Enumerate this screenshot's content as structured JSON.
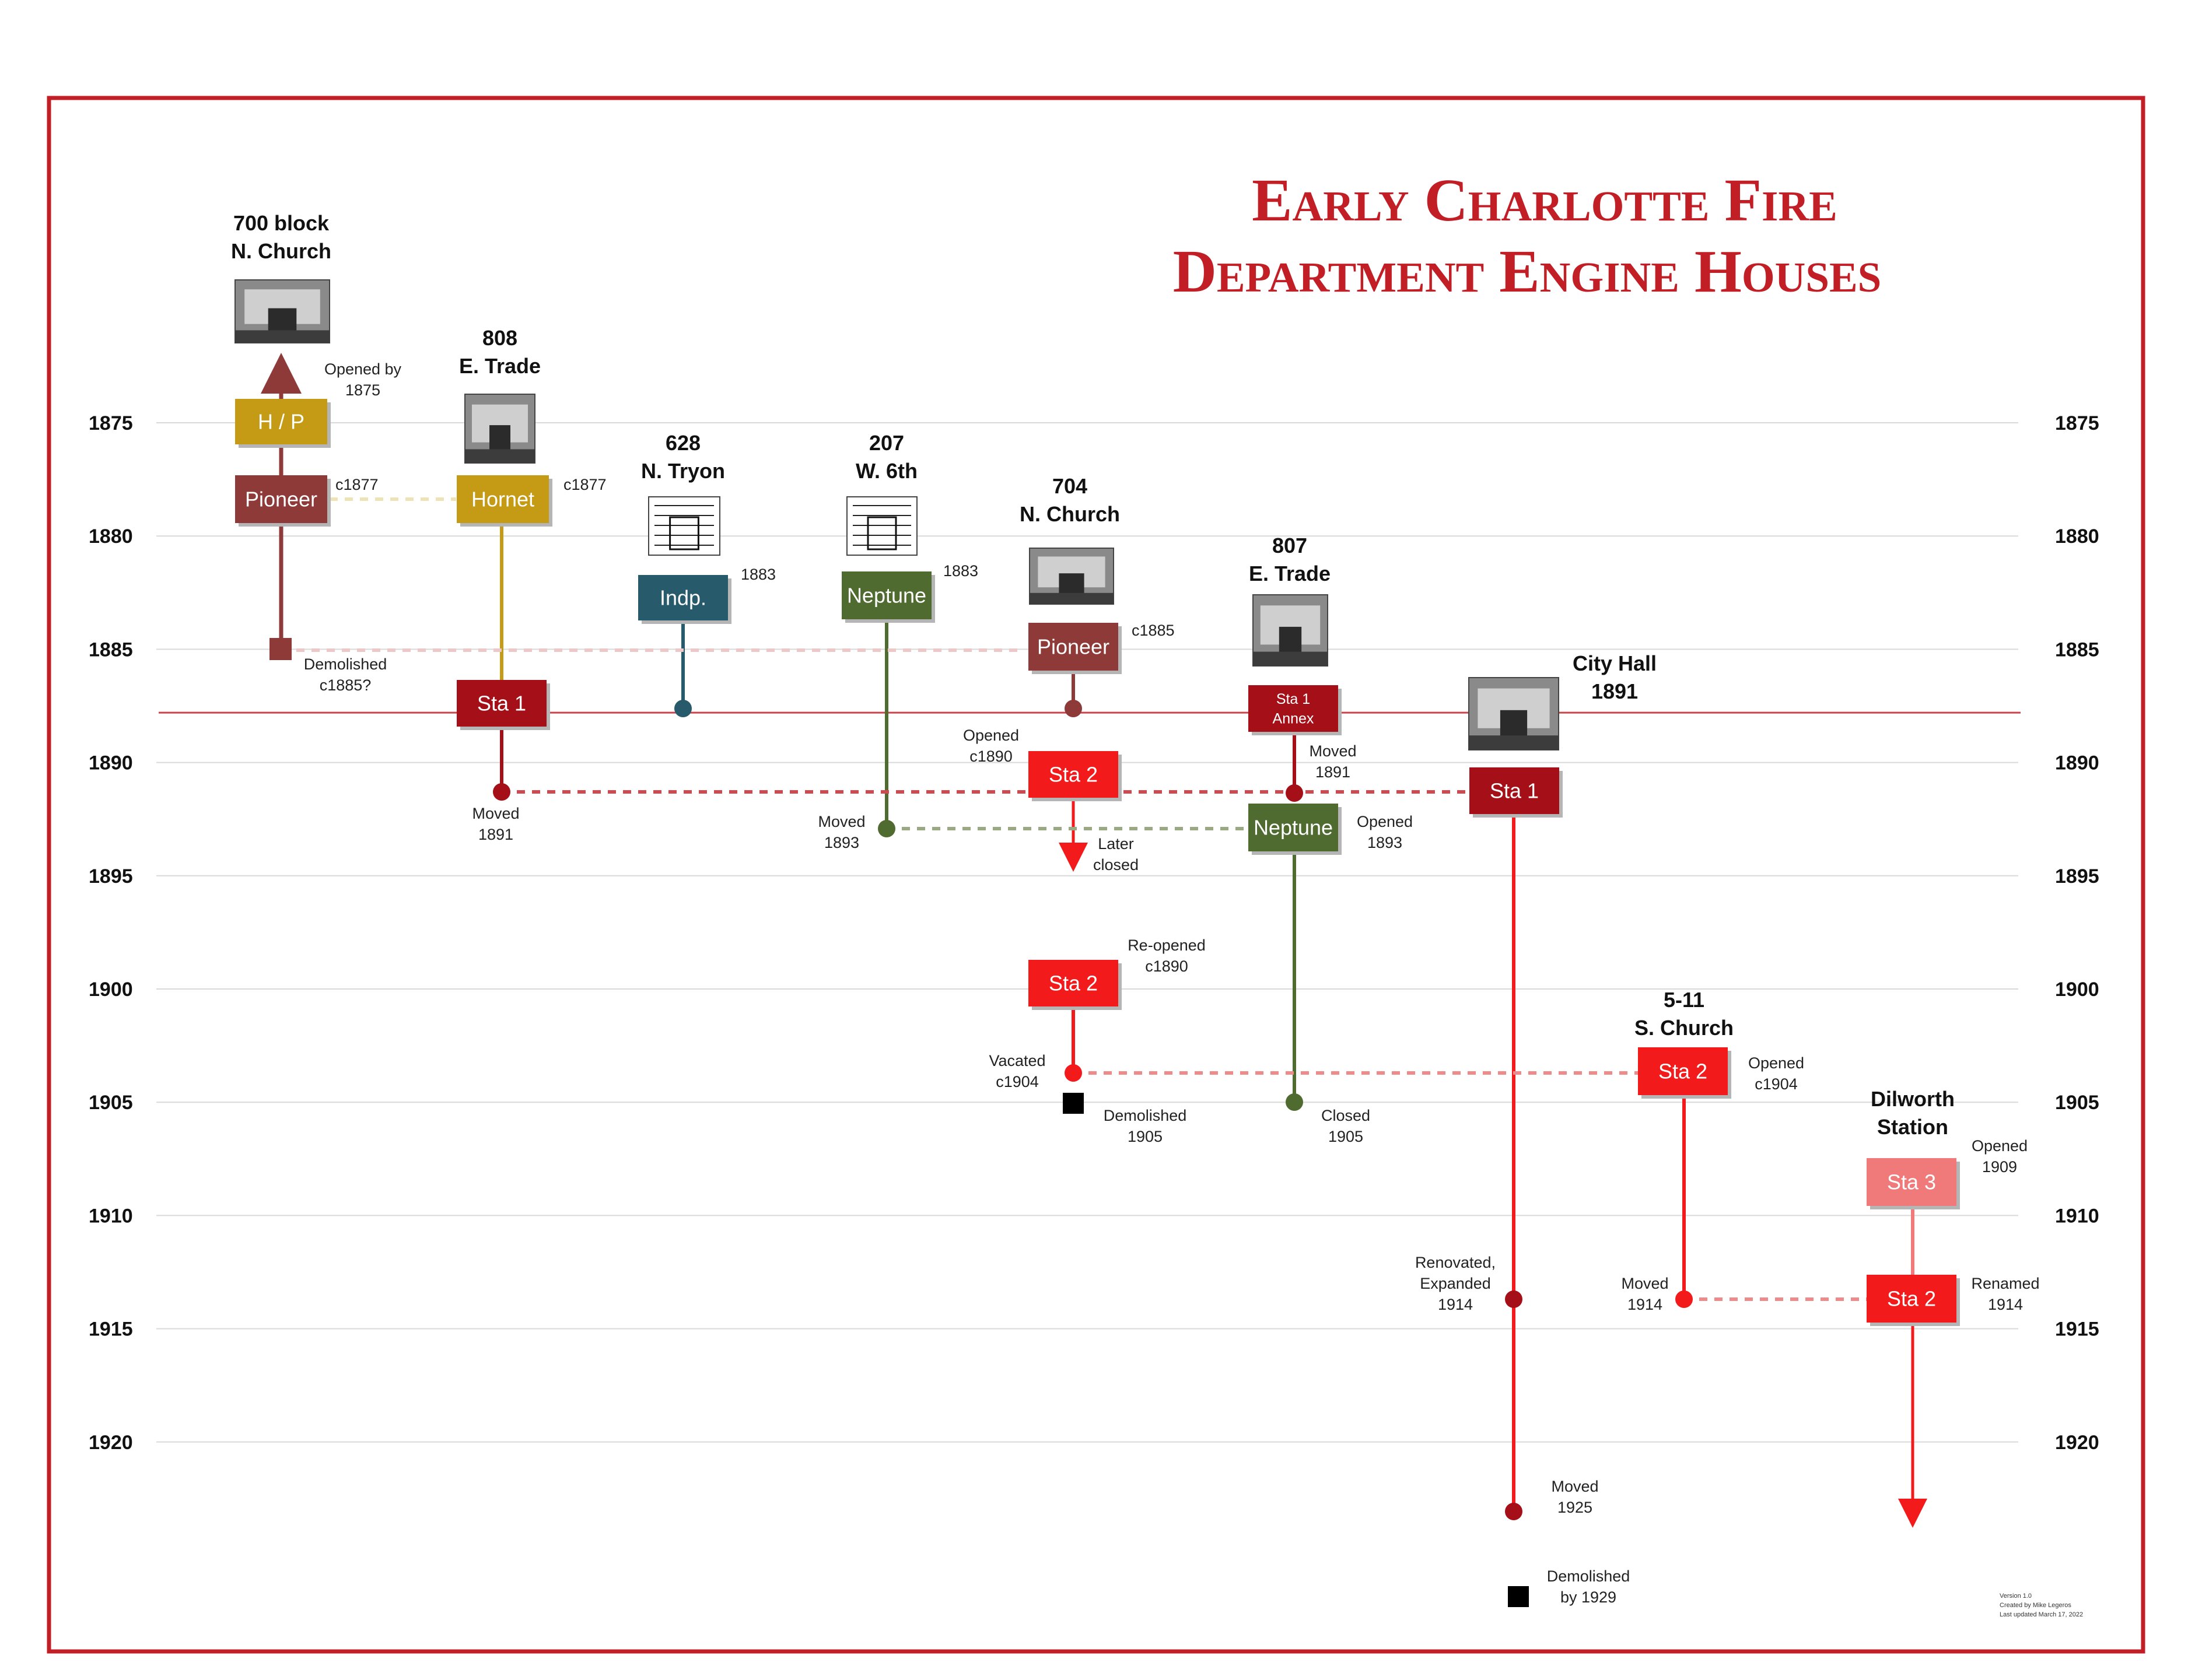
{
  "title": {
    "line1": "Early Charlotte Fire",
    "line2": "Department Engine Houses"
  },
  "colors": {
    "frame": "#c21e26",
    "gridline": "#d9d9d9",
    "pioneer": "#8e3a38",
    "hose_gold": "#c59a15",
    "independent": "#275a6b",
    "neptune": "#506b30",
    "sta1": "#a50f17",
    "sta2": "#f21a1a",
    "sta3": "#f07a7a",
    "marker_black": "#000000"
  },
  "years": [
    "1875",
    "1880",
    "1885",
    "1890",
    "1895",
    "1900",
    "1905",
    "1910",
    "1915",
    "1920"
  ],
  "locations": [
    {
      "key": "loc_700_church",
      "line1": "700 block",
      "line2": "N. Church",
      "icon": "photo-icon"
    },
    {
      "key": "loc_808_trade",
      "line1": "808",
      "line2": "E. Trade",
      "icon": "photo-icon"
    },
    {
      "key": "loc_628_tryon",
      "line1": "628",
      "line2": "N. Tryon",
      "icon": "sketch-icon"
    },
    {
      "key": "loc_207_6th",
      "line1": "207",
      "line2": "W. 6th",
      "icon": "sketch-icon"
    },
    {
      "key": "loc_704_church",
      "line1": "704",
      "line2": "N. Church",
      "icon": "photo-icon"
    },
    {
      "key": "loc_807_trade",
      "line1": "807",
      "line2": "E. Trade",
      "icon": "photo-icon"
    },
    {
      "key": "loc_city_hall",
      "line1": "City Hall",
      "line2": "1891",
      "icon": "photo-icon"
    },
    {
      "key": "loc_511_church",
      "line1": "5-11",
      "line2": "S. Church",
      "icon": ""
    },
    {
      "key": "loc_dilworth",
      "line1": "Dilworth",
      "line2": "Station",
      "icon": ""
    }
  ],
  "companies": [
    {
      "key": "hp",
      "label": "H / P",
      "color": "#c59a15",
      "label2": ""
    },
    {
      "key": "pioneer1",
      "label": "Pioneer",
      "color": "#8e3a38",
      "label2": ""
    },
    {
      "key": "hornet",
      "label": "Hornet",
      "color": "#c59a15",
      "label2": ""
    },
    {
      "key": "indp",
      "label": "Indp.",
      "color": "#275a6b",
      "label2": ""
    },
    {
      "key": "neptune1",
      "label": "Neptune",
      "color": "#506b30",
      "label2": ""
    },
    {
      "key": "pioneer2",
      "label": "Pioneer",
      "color": "#8e3a38",
      "label2": ""
    },
    {
      "key": "sta1_trade",
      "label": "Sta 1",
      "color": "#a50f17",
      "label2": ""
    },
    {
      "key": "sta1_annex",
      "label": "Sta 1",
      "color": "#a50f17",
      "label2": "Annex"
    },
    {
      "key": "sta2_a",
      "label": "Sta 2",
      "color": "#f21a1a",
      "label2": ""
    },
    {
      "key": "sta1_cityhall",
      "label": "Sta 1",
      "color": "#a50f17",
      "label2": ""
    },
    {
      "key": "neptune2",
      "label": "Neptune",
      "color": "#506b30",
      "label2": ""
    },
    {
      "key": "sta2_b",
      "label": "Sta 2",
      "color": "#f21a1a",
      "label2": ""
    },
    {
      "key": "sta2_c",
      "label": "Sta 2",
      "color": "#f21a1a",
      "label2": ""
    },
    {
      "key": "sta3",
      "label": "Sta 3",
      "color": "#f07a7a",
      "label2": ""
    },
    {
      "key": "sta2_d",
      "label": "Sta 2",
      "color": "#f21a1a",
      "label2": ""
    }
  ],
  "annotations": [
    {
      "key": "opened_by_1875",
      "line1": "Opened by",
      "line2": "1875"
    },
    {
      "key": "c1877_a",
      "line1": "c1877",
      "line2": ""
    },
    {
      "key": "c1877_b",
      "line1": "c1877",
      "line2": ""
    },
    {
      "key": "t1883_a",
      "line1": "1883",
      "line2": ""
    },
    {
      "key": "t1883_b",
      "line1": "1883",
      "line2": ""
    },
    {
      "key": "c1885",
      "line1": "c1885",
      "line2": ""
    },
    {
      "key": "demolished_c1885",
      "line1": "Demolished",
      "line2": "c1885?"
    },
    {
      "key": "moved_1891_a",
      "line1": "Moved",
      "line2": "1891"
    },
    {
      "key": "opened_c1890",
      "line1": "Opened",
      "line2": "c1890"
    },
    {
      "key": "moved_1891_b",
      "line1": "Moved",
      "line2": "1891"
    },
    {
      "key": "moved_1893",
      "line1": "Moved",
      "line2": "1893"
    },
    {
      "key": "later_closed",
      "line1": "Later",
      "line2": "closed"
    },
    {
      "key": "opened_1893",
      "line1": "Opened",
      "line2": "1893"
    },
    {
      "key": "reopened_c1890",
      "line1": "Re-opened",
      "line2": "c1890"
    },
    {
      "key": "vacated_c1904",
      "line1": "Vacated",
      "line2": "c1904"
    },
    {
      "key": "demolished_1905",
      "line1": "Demolished",
      "line2": "1905"
    },
    {
      "key": "closed_1905",
      "line1": "Closed",
      "line2": "1905"
    },
    {
      "key": "opened_c1904",
      "line1": "Opened",
      "line2": "c1904"
    },
    {
      "key": "opened_1909",
      "line1": "Opened",
      "line2": "1909"
    },
    {
      "key": "renovated_1914",
      "line1": "Renovated,",
      "line2": "Expanded",
      "line3": "1914"
    },
    {
      "key": "moved_1914",
      "line1": "Moved",
      "line2": "1914"
    },
    {
      "key": "renamed_1914",
      "line1": "Renamed",
      "line2": "1914"
    },
    {
      "key": "moved_1925",
      "line1": "Moved",
      "line2": "1925"
    },
    {
      "key": "demolished_1929",
      "line1": "Demolished",
      "line2": "by 1929"
    }
  ],
  "version": {
    "line1": "Version 1.0",
    "line2": "Created by Mike Legeros",
    "line3": "Last updated March 17, 2022"
  }
}
